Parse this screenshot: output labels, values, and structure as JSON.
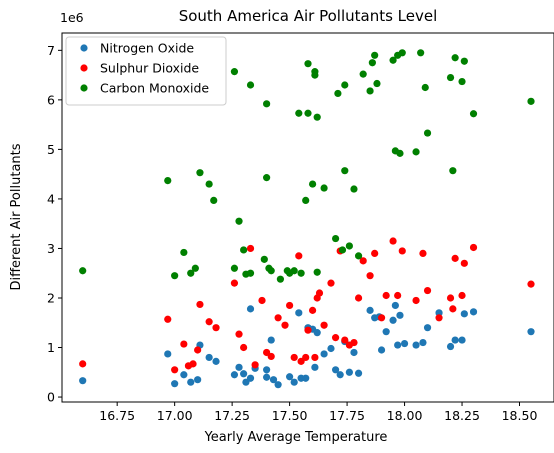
{
  "chart_data": {
    "type": "scatter",
    "title": "South America Air Pollutants Level",
    "xlabel": "Yearly Average Temperature",
    "ylabel": "Different Air Pollutants",
    "y_offset_text": "1e6",
    "xlim": [
      16.51,
      18.65
    ],
    "ylim": [
      -0.1,
      7.35
    ],
    "y_scale_factor": 1000000,
    "x_ticks": [
      "16.75",
      "17.00",
      "17.25",
      "17.50",
      "17.75",
      "18.00",
      "18.25",
      "18.50"
    ],
    "y_ticks": [
      "0",
      "1",
      "2",
      "3",
      "4",
      "5",
      "6",
      "7"
    ],
    "legend_position": "upper-left",
    "grid": false,
    "series": [
      {
        "name": "Nitrogen Oxide",
        "color": "#1f77b4",
        "points": [
          [
            16.6,
            0.33
          ],
          [
            16.97,
            0.87
          ],
          [
            17.0,
            0.27
          ],
          [
            17.04,
            0.45
          ],
          [
            17.07,
            0.3
          ],
          [
            17.1,
            0.35
          ],
          [
            17.11,
            1.05
          ],
          [
            17.15,
            0.8
          ],
          [
            17.18,
            0.72
          ],
          [
            17.26,
            0.45
          ],
          [
            17.28,
            0.6
          ],
          [
            17.3,
            0.47
          ],
          [
            17.31,
            0.3
          ],
          [
            17.33,
            0.38
          ],
          [
            17.33,
            1.78
          ],
          [
            17.35,
            0.58
          ],
          [
            17.4,
            0.55
          ],
          [
            17.4,
            0.4
          ],
          [
            17.42,
            1.15
          ],
          [
            17.43,
            0.35
          ],
          [
            17.45,
            0.25
          ],
          [
            17.5,
            0.41
          ],
          [
            17.52,
            0.3
          ],
          [
            17.54,
            1.7
          ],
          [
            17.55,
            0.38
          ],
          [
            17.57,
            0.38
          ],
          [
            17.58,
            1.4
          ],
          [
            17.6,
            1.37
          ],
          [
            17.61,
            0.6
          ],
          [
            17.62,
            1.3
          ],
          [
            17.65,
            0.87
          ],
          [
            17.68,
            0.98
          ],
          [
            17.7,
            0.55
          ],
          [
            17.72,
            0.45
          ],
          [
            17.74,
            1.12
          ],
          [
            17.76,
            0.5
          ],
          [
            17.78,
            0.9
          ],
          [
            17.8,
            0.48
          ],
          [
            17.85,
            1.75
          ],
          [
            17.87,
            1.6
          ],
          [
            17.89,
            1.62
          ],
          [
            17.9,
            0.95
          ],
          [
            17.92,
            1.32
          ],
          [
            17.95,
            1.55
          ],
          [
            17.96,
            1.85
          ],
          [
            17.97,
            1.05
          ],
          [
            17.98,
            1.65
          ],
          [
            18.0,
            1.08
          ],
          [
            18.05,
            1.05
          ],
          [
            18.08,
            1.1
          ],
          [
            18.1,
            1.4
          ],
          [
            18.15,
            1.7
          ],
          [
            18.2,
            1.02
          ],
          [
            18.22,
            1.15
          ],
          [
            18.25,
            1.15
          ],
          [
            18.26,
            1.68
          ],
          [
            18.3,
            1.72
          ],
          [
            18.55,
            1.32
          ]
        ]
      },
      {
        "name": "Sulphur Dioxide",
        "color": "#ff0000",
        "points": [
          [
            16.6,
            0.67
          ],
          [
            16.97,
            1.57
          ],
          [
            17.0,
            0.55
          ],
          [
            17.04,
            1.07
          ],
          [
            17.06,
            0.63
          ],
          [
            17.08,
            0.67
          ],
          [
            17.1,
            0.95
          ],
          [
            17.11,
            1.87
          ],
          [
            17.15,
            1.52
          ],
          [
            17.18,
            1.4
          ],
          [
            17.26,
            2.3
          ],
          [
            17.28,
            1.27
          ],
          [
            17.3,
            1.0
          ],
          [
            17.33,
            3.0
          ],
          [
            17.35,
            0.65
          ],
          [
            17.38,
            1.95
          ],
          [
            17.4,
            0.9
          ],
          [
            17.42,
            0.82
          ],
          [
            17.45,
            1.6
          ],
          [
            17.48,
            1.45
          ],
          [
            17.5,
            1.85
          ],
          [
            17.52,
            0.8
          ],
          [
            17.54,
            2.85
          ],
          [
            17.55,
            0.72
          ],
          [
            17.57,
            0.8
          ],
          [
            17.58,
            1.35
          ],
          [
            17.6,
            1.75
          ],
          [
            17.61,
            0.8
          ],
          [
            17.62,
            2.0
          ],
          [
            17.63,
            2.1
          ],
          [
            17.65,
            1.45
          ],
          [
            17.68,
            2.3
          ],
          [
            17.7,
            1.2
          ],
          [
            17.72,
            2.95
          ],
          [
            17.74,
            1.15
          ],
          [
            17.76,
            1.05
          ],
          [
            17.78,
            1.1
          ],
          [
            17.8,
            2.0
          ],
          [
            17.82,
            2.75
          ],
          [
            17.85,
            2.45
          ],
          [
            17.87,
            2.9
          ],
          [
            17.9,
            1.6
          ],
          [
            17.92,
            2.05
          ],
          [
            17.95,
            3.15
          ],
          [
            17.97,
            2.05
          ],
          [
            17.99,
            2.95
          ],
          [
            18.05,
            1.95
          ],
          [
            18.08,
            2.9
          ],
          [
            18.1,
            2.15
          ],
          [
            18.15,
            1.6
          ],
          [
            18.2,
            2.0
          ],
          [
            18.21,
            1.78
          ],
          [
            18.22,
            2.8
          ],
          [
            18.25,
            2.05
          ],
          [
            18.26,
            2.7
          ],
          [
            18.3,
            3.02
          ],
          [
            18.55,
            2.28
          ]
        ]
      },
      {
        "name": "Carbon Monoxide",
        "color": "#008000",
        "points": [
          [
            16.6,
            2.55
          ],
          [
            16.97,
            4.37
          ],
          [
            17.0,
            2.45
          ],
          [
            17.04,
            2.92
          ],
          [
            17.07,
            2.5
          ],
          [
            17.09,
            2.6
          ],
          [
            17.11,
            4.53
          ],
          [
            17.15,
            4.3
          ],
          [
            17.17,
            3.97
          ],
          [
            17.26,
            2.6
          ],
          [
            17.26,
            6.57
          ],
          [
            17.28,
            3.55
          ],
          [
            17.3,
            2.97
          ],
          [
            17.31,
            2.48
          ],
          [
            17.33,
            6.3
          ],
          [
            17.33,
            2.5
          ],
          [
            17.39,
            2.78
          ],
          [
            17.4,
            5.92
          ],
          [
            17.4,
            4.43
          ],
          [
            17.41,
            2.6
          ],
          [
            17.42,
            2.55
          ],
          [
            17.46,
            2.38
          ],
          [
            17.49,
            2.55
          ],
          [
            17.5,
            2.5
          ],
          [
            17.52,
            2.55
          ],
          [
            17.54,
            5.73
          ],
          [
            17.55,
            2.5
          ],
          [
            17.57,
            3.97
          ],
          [
            17.58,
            5.73
          ],
          [
            17.58,
            6.73
          ],
          [
            17.6,
            4.3
          ],
          [
            17.61,
            6.5
          ],
          [
            17.61,
            6.57
          ],
          [
            17.62,
            2.52
          ],
          [
            17.62,
            5.65
          ],
          [
            17.65,
            4.22
          ],
          [
            17.7,
            3.2
          ],
          [
            17.71,
            6.13
          ],
          [
            17.73,
            2.97
          ],
          [
            17.74,
            6.3
          ],
          [
            17.74,
            4.57
          ],
          [
            17.76,
            3.05
          ],
          [
            17.78,
            4.2
          ],
          [
            17.8,
            2.85
          ],
          [
            17.82,
            6.52
          ],
          [
            17.85,
            6.18
          ],
          [
            17.86,
            6.75
          ],
          [
            17.87,
            6.9
          ],
          [
            17.88,
            6.33
          ],
          [
            17.95,
            6.8
          ],
          [
            17.96,
            4.97
          ],
          [
            17.97,
            6.9
          ],
          [
            17.98,
            4.92
          ],
          [
            17.99,
            6.95
          ],
          [
            18.05,
            4.95
          ],
          [
            18.07,
            6.95
          ],
          [
            18.09,
            6.25
          ],
          [
            18.1,
            5.33
          ],
          [
            18.2,
            6.45
          ],
          [
            18.21,
            4.57
          ],
          [
            18.22,
            6.85
          ],
          [
            18.25,
            6.37
          ],
          [
            18.26,
            6.78
          ],
          [
            18.3,
            5.72
          ],
          [
            18.55,
            5.97
          ]
        ]
      }
    ]
  }
}
